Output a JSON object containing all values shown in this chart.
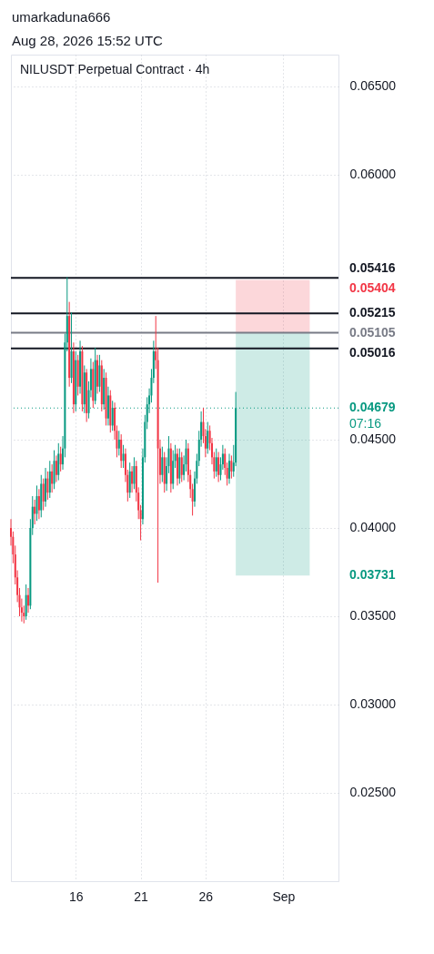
{
  "chart_data": {
    "type": "candlestick",
    "title": "NILUSDT Perpetual Contract · 4h",
    "annotations": [
      "umarkaduna666",
      "Aug 28, 2026 15:52 UTC",
      "07:16"
    ],
    "x": [
      "2026-08-11T00:00",
      "2026-08-11T04:00",
      "2026-08-11T08:00",
      "2026-08-11T12:00",
      "2026-08-11T16:00",
      "2026-08-11T20:00",
      "2026-08-12T00:00",
      "2026-08-12T04:00",
      "2026-08-12T08:00",
      "2026-08-12T12:00",
      "2026-08-12T16:00",
      "2026-08-12T20:00",
      "2026-08-13T00:00",
      "2026-08-13T04:00",
      "2026-08-13T08:00",
      "2026-08-13T12:00",
      "2026-08-13T16:00",
      "2026-08-13T20:00",
      "2026-08-14T00:00",
      "2026-08-14T04:00",
      "2026-08-14T08:00",
      "2026-08-14T12:00",
      "2026-08-14T16:00",
      "2026-08-14T20:00",
      "2026-08-15T00:00",
      "2026-08-15T04:00",
      "2026-08-15T08:00",
      "2026-08-15T12:00",
      "2026-08-15T16:00",
      "2026-08-15T20:00",
      "2026-08-16T00:00",
      "2026-08-16T04:00",
      "2026-08-16T08:00",
      "2026-08-16T12:00",
      "2026-08-16T16:00",
      "2026-08-16T20:00",
      "2026-08-17T00:00",
      "2026-08-17T04:00",
      "2026-08-17T08:00",
      "2026-08-17T12:00",
      "2026-08-17T16:00",
      "2026-08-17T20:00",
      "2026-08-18T00:00",
      "2026-08-18T04:00",
      "2026-08-18T08:00",
      "2026-08-18T12:00",
      "2026-08-18T16:00",
      "2026-08-18T20:00",
      "2026-08-19T00:00",
      "2026-08-19T04:00",
      "2026-08-19T08:00",
      "2026-08-19T12:00",
      "2026-08-19T16:00",
      "2026-08-19T20:00",
      "2026-08-20T00:00",
      "2026-08-20T04:00",
      "2026-08-20T08:00",
      "2026-08-20T12:00",
      "2026-08-20T16:00",
      "2026-08-20T20:00",
      "2026-08-21T00:00",
      "2026-08-21T04:00",
      "2026-08-21T08:00",
      "2026-08-21T12:00",
      "2026-08-21T16:00",
      "2026-08-21T20:00",
      "2026-08-22T00:00",
      "2026-08-22T04:00",
      "2026-08-22T08:00",
      "2026-08-22T12:00",
      "2026-08-22T16:00",
      "2026-08-22T20:00",
      "2026-08-23T00:00",
      "2026-08-23T04:00",
      "2026-08-23T08:00",
      "2026-08-23T12:00",
      "2026-08-23T16:00",
      "2026-08-23T20:00",
      "2026-08-24T00:00",
      "2026-08-24T04:00",
      "2026-08-24T08:00",
      "2026-08-24T12:00",
      "2026-08-24T16:00",
      "2026-08-24T20:00",
      "2026-08-25T00:00",
      "2026-08-25T04:00",
      "2026-08-25T08:00",
      "2026-08-25T12:00",
      "2026-08-25T16:00",
      "2026-08-25T20:00",
      "2026-08-26T00:00",
      "2026-08-26T04:00",
      "2026-08-26T08:00",
      "2026-08-26T12:00",
      "2026-08-26T16:00",
      "2026-08-26T20:00",
      "2026-08-27T00:00",
      "2026-08-27T04:00",
      "2026-08-27T08:00",
      "2026-08-27T12:00",
      "2026-08-27T16:00",
      "2026-08-27T20:00",
      "2026-08-28T00:00",
      "2026-08-28T04:00",
      "2026-08-28T08:00"
    ],
    "ohlc": [
      [
        0.04,
        0.0405,
        0.039,
        0.0395
      ],
      [
        0.0395,
        0.0398,
        0.038,
        0.0385
      ],
      [
        0.0385,
        0.039,
        0.0368,
        0.0372
      ],
      [
        0.0372,
        0.0376,
        0.0358,
        0.0362
      ],
      [
        0.0362,
        0.0366,
        0.035,
        0.0355
      ],
      [
        0.0355,
        0.036,
        0.0347,
        0.0352
      ],
      [
        0.0352,
        0.0356,
        0.0346,
        0.035
      ],
      [
        0.035,
        0.0368,
        0.0348,
        0.0362
      ],
      [
        0.0362,
        0.0366,
        0.0352,
        0.0356
      ],
      [
        0.0356,
        0.0405,
        0.0354,
        0.04
      ],
      [
        0.04,
        0.0418,
        0.0396,
        0.0412
      ],
      [
        0.0412,
        0.0416,
        0.0402,
        0.0408
      ],
      [
        0.0408,
        0.0424,
        0.0404,
        0.0418
      ],
      [
        0.0418,
        0.0422,
        0.0405,
        0.041
      ],
      [
        0.041,
        0.043,
        0.0406,
        0.0425
      ],
      [
        0.0425,
        0.0428,
        0.041,
        0.0415
      ],
      [
        0.0415,
        0.0434,
        0.0412,
        0.0428
      ],
      [
        0.0428,
        0.0432,
        0.0416,
        0.042
      ],
      [
        0.042,
        0.0438,
        0.0417,
        0.0432
      ],
      [
        0.0432,
        0.0436,
        0.042,
        0.0425
      ],
      [
        0.0425,
        0.0444,
        0.0422,
        0.0438
      ],
      [
        0.0438,
        0.0441,
        0.0426,
        0.043
      ],
      [
        0.043,
        0.0448,
        0.0427,
        0.0442
      ],
      [
        0.0442,
        0.0446,
        0.0432,
        0.0436
      ],
      [
        0.0436,
        0.0452,
        0.0433,
        0.0445
      ],
      [
        0.0445,
        0.051,
        0.044,
        0.0505
      ],
      [
        0.0505,
        0.0542,
        0.05,
        0.052
      ],
      [
        0.052,
        0.0528,
        0.048,
        0.0485
      ],
      [
        0.0485,
        0.0522,
        0.0482,
        0.05
      ],
      [
        0.05,
        0.0505,
        0.0465,
        0.047
      ],
      [
        0.047,
        0.05,
        0.0466,
        0.0495
      ],
      [
        0.0495,
        0.0498,
        0.0475,
        0.048
      ],
      [
        0.048,
        0.0506,
        0.0476,
        0.05
      ],
      [
        0.05,
        0.0503,
        0.0466,
        0.047
      ],
      [
        0.047,
        0.0492,
        0.0465,
        0.0488
      ],
      [
        0.0488,
        0.049,
        0.046,
        0.0465
      ],
      [
        0.0465,
        0.0483,
        0.0462,
        0.0478
      ],
      [
        0.0478,
        0.0496,
        0.0474,
        0.049
      ],
      [
        0.049,
        0.0494,
        0.0468,
        0.0472
      ],
      [
        0.0472,
        0.0502,
        0.047,
        0.0495
      ],
      [
        0.0495,
        0.0498,
        0.0476,
        0.048
      ],
      [
        0.048,
        0.0498,
        0.0477,
        0.0492
      ],
      [
        0.0492,
        0.0495,
        0.0466,
        0.047
      ],
      [
        0.047,
        0.049,
        0.0467,
        0.0485
      ],
      [
        0.0485,
        0.0488,
        0.0458,
        0.0462
      ],
      [
        0.0462,
        0.048,
        0.0458,
        0.0475
      ],
      [
        0.0475,
        0.0478,
        0.0454,
        0.0458
      ],
      [
        0.0458,
        0.0472,
        0.0455,
        0.0468
      ],
      [
        0.0468,
        0.0471,
        0.045,
        0.0455
      ],
      [
        0.0455,
        0.0458,
        0.044,
        0.0445
      ],
      [
        0.0445,
        0.0455,
        0.0441,
        0.045
      ],
      [
        0.045,
        0.0453,
        0.0434,
        0.0438
      ],
      [
        0.0438,
        0.0447,
        0.0434,
        0.0442
      ],
      [
        0.0442,
        0.0445,
        0.0426,
        0.043
      ],
      [
        0.043,
        0.0433,
        0.0415,
        0.042
      ],
      [
        0.042,
        0.0437,
        0.0417,
        0.0432
      ],
      [
        0.0432,
        0.0435,
        0.042,
        0.0425
      ],
      [
        0.0425,
        0.044,
        0.0422,
        0.0435
      ],
      [
        0.0435,
        0.0438,
        0.0415,
        0.042
      ],
      [
        0.042,
        0.0423,
        0.0405,
        0.041
      ],
      [
        0.041,
        0.0413,
        0.0393,
        0.0405
      ],
      [
        0.0405,
        0.0445,
        0.0402,
        0.044
      ],
      [
        0.044,
        0.0464,
        0.0437,
        0.046
      ],
      [
        0.046,
        0.0474,
        0.0456,
        0.047
      ],
      [
        0.047,
        0.0479,
        0.0465,
        0.0475
      ],
      [
        0.0475,
        0.049,
        0.0471,
        0.0485
      ],
      [
        0.0485,
        0.0506,
        0.0482,
        0.05
      ],
      [
        0.05,
        0.052,
        0.049,
        0.0495
      ],
      [
        0.0495,
        0.0502,
        0.0369,
        0.0445
      ],
      [
        0.0445,
        0.045,
        0.0425,
        0.043
      ],
      [
        0.043,
        0.0446,
        0.0426,
        0.044
      ],
      [
        0.044,
        0.0443,
        0.042,
        0.0425
      ],
      [
        0.0425,
        0.044,
        0.0421,
        0.0435
      ],
      [
        0.0435,
        0.0452,
        0.0431,
        0.0445
      ],
      [
        0.0445,
        0.0448,
        0.042,
        0.0425
      ],
      [
        0.0425,
        0.0444,
        0.0422,
        0.0438
      ],
      [
        0.0438,
        0.0447,
        0.0434,
        0.0442
      ],
      [
        0.0442,
        0.0445,
        0.0424,
        0.0428
      ],
      [
        0.0428,
        0.0445,
        0.0425,
        0.044
      ],
      [
        0.044,
        0.0443,
        0.0426,
        0.043
      ],
      [
        0.043,
        0.0441,
        0.0427,
        0.0436
      ],
      [
        0.0436,
        0.045,
        0.0432,
        0.0445
      ],
      [
        0.0445,
        0.0448,
        0.0426,
        0.043
      ],
      [
        0.043,
        0.0433,
        0.0417,
        0.0422
      ],
      [
        0.0422,
        0.0425,
        0.0407,
        0.0415
      ],
      [
        0.0415,
        0.0432,
        0.0412,
        0.0428
      ],
      [
        0.0428,
        0.0442,
        0.0425,
        0.0438
      ],
      [
        0.0438,
        0.0455,
        0.0435,
        0.045
      ],
      [
        0.045,
        0.0466,
        0.0446,
        0.046
      ],
      [
        0.046,
        0.0468,
        0.0448,
        0.0452
      ],
      [
        0.0452,
        0.0456,
        0.044,
        0.0445
      ],
      [
        0.0445,
        0.046,
        0.0442,
        0.0455
      ],
      [
        0.0455,
        0.0458,
        0.0444,
        0.0448
      ],
      [
        0.0448,
        0.0451,
        0.0436,
        0.044
      ],
      [
        0.044,
        0.0443,
        0.0428,
        0.0432
      ],
      [
        0.0432,
        0.0445,
        0.0429,
        0.044
      ],
      [
        0.044,
        0.0443,
        0.0426,
        0.043
      ],
      [
        0.043,
        0.044,
        0.0427,
        0.0436
      ],
      [
        0.0436,
        0.0447,
        0.0433,
        0.0442
      ],
      [
        0.0442,
        0.0445,
        0.043,
        0.0434
      ],
      [
        0.0434,
        0.0437,
        0.0424,
        0.0428
      ],
      [
        0.0428,
        0.0442,
        0.0425,
        0.0438
      ],
      [
        0.0438,
        0.0441,
        0.0428,
        0.0432
      ],
      [
        0.0432,
        0.0447,
        0.0429,
        0.0437
      ],
      [
        0.0437,
        0.0477,
        0.0435,
        0.04679
      ]
    ],
    "xlim": [
      "2026-08-11T00:00",
      "2026-09-05T06:00"
    ],
    "xticks": [
      {
        "value": "2026-08-16T00:00",
        "label": "16"
      },
      {
        "value": "2026-08-21T00:00",
        "label": "21"
      },
      {
        "value": "2026-08-26T00:00",
        "label": "26"
      },
      {
        "value": "2026-09-01T00:00",
        "label": "Sep"
      }
    ],
    "ylim": [
      0.02,
      0.0668
    ],
    "yticks": [
      {
        "value": 0.025,
        "label": "0.02500"
      },
      {
        "value": 0.03,
        "label": "0.03000"
      },
      {
        "value": 0.035,
        "label": "0.03500"
      },
      {
        "value": 0.04,
        "label": "0.04000"
      },
      {
        "value": 0.045,
        "label": "0.04500"
      },
      {
        "value": 0.06,
        "label": "0.06000"
      },
      {
        "value": 0.065,
        "label": "0.06500"
      }
    ],
    "grid": true,
    "bands": [
      {
        "axis": "y",
        "from": 0.05105,
        "to": 0.05404,
        "label": "0.05404",
        "color": "#f23645"
      },
      {
        "axis": "y",
        "from": 0.03731,
        "to": 0.05105,
        "label": "0.03731",
        "color": "#089981"
      }
    ],
    "ref_lines": [
      {
        "axis": "y",
        "value": 0.05416,
        "label": "0.05416",
        "color": "#131722"
      },
      {
        "axis": "y",
        "value": 0.05215,
        "label": "0.05215",
        "color": "#131722"
      },
      {
        "axis": "y",
        "value": 0.05105,
        "label": "0.05105",
        "color": "#787b86"
      },
      {
        "axis": "y",
        "value": 0.05016,
        "label": "0.05016",
        "color": "#131722"
      },
      {
        "axis": "y",
        "value": 0.04679,
        "label": "0.04679",
        "color": "#089981",
        "line_style": "dotted"
      }
    ]
  }
}
